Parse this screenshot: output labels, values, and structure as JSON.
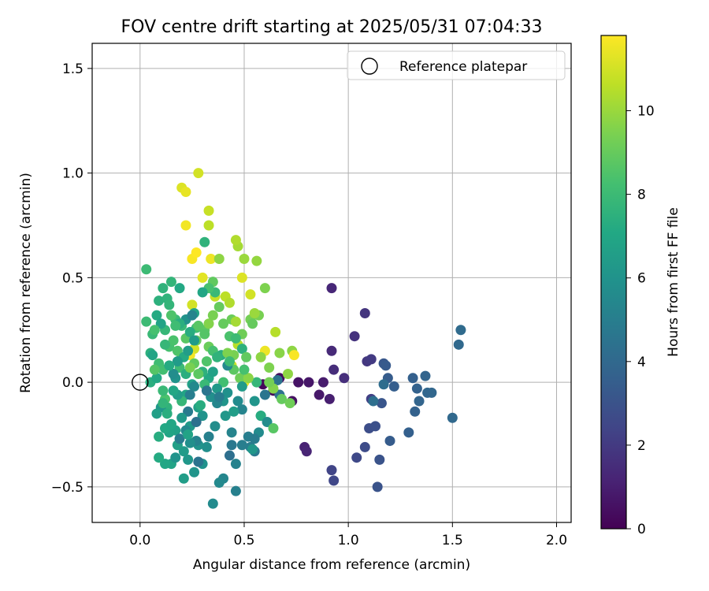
{
  "chart_data": {
    "type": "scatter",
    "title": "FOV centre drift starting at 2025/05/31 07:04:33",
    "xlabel": "Angular distance from reference (arcmin)",
    "ylabel": "Rotation from reference (arcmin)",
    "xlim": [
      -0.23,
      2.07
    ],
    "ylim": [
      -0.67,
      1.62
    ],
    "xticks": [
      0.0,
      0.5,
      1.0,
      1.5,
      2.0
    ],
    "xtick_labels": [
      "0.0",
      "0.5",
      "1.0",
      "1.5",
      "2.0"
    ],
    "yticks": [
      -0.5,
      0.0,
      0.5,
      1.0,
      1.5
    ],
    "ytick_labels": [
      "−0.5",
      "0.0",
      "0.5",
      "1.0",
      "1.5"
    ],
    "grid": true,
    "legend": {
      "placement": "top-right",
      "entries": [
        "Reference platepar"
      ]
    },
    "reference_point": {
      "x": 0.0,
      "y": 0.0,
      "label": "Reference platepar"
    },
    "colorbar": {
      "label": "Hours from first FF file",
      "colormap": "viridis",
      "range": [
        0,
        11.8
      ],
      "ticks": [
        0,
        2,
        4,
        6,
        8,
        10
      ],
      "tick_labels": [
        "0",
        "2",
        "4",
        "6",
        "8",
        "10"
      ]
    },
    "points": [
      [
        0.59,
        -0.01,
        0.2
      ],
      [
        0.64,
        -0.04,
        0.3
      ],
      [
        0.67,
        0.02,
        0.4
      ],
      [
        0.73,
        -0.09,
        0.5
      ],
      [
        0.76,
        0.0,
        0.6
      ],
      [
        0.81,
        0.0,
        0.7
      ],
      [
        0.86,
        -0.06,
        0.8
      ],
      [
        0.88,
        0.0,
        0.9
      ],
      [
        0.91,
        -0.08,
        1.0
      ],
      [
        0.79,
        -0.31,
        1.1
      ],
      [
        0.8,
        -0.33,
        1.2
      ],
      [
        0.92,
        0.45,
        1.3
      ],
      [
        0.92,
        0.15,
        1.4
      ],
      [
        0.93,
        0.06,
        1.5
      ],
      [
        0.98,
        0.02,
        1.6
      ],
      [
        1.03,
        0.22,
        1.7
      ],
      [
        1.08,
        0.33,
        1.8
      ],
      [
        1.09,
        0.1,
        1.9
      ],
      [
        1.11,
        0.11,
        2.0
      ],
      [
        1.11,
        -0.08,
        2.2
      ],
      [
        0.92,
        -0.42,
        2.4
      ],
      [
        0.93,
        -0.47,
        2.5
      ],
      [
        1.04,
        -0.36,
        2.6
      ],
      [
        1.08,
        -0.31,
        2.7
      ],
      [
        1.1,
        -0.22,
        2.8
      ],
      [
        1.13,
        -0.21,
        2.9
      ],
      [
        1.14,
        -0.5,
        3.0
      ],
      [
        1.15,
        -0.37,
        3.0
      ],
      [
        1.16,
        -0.1,
        3.1
      ],
      [
        1.17,
        0.09,
        3.2
      ],
      [
        1.18,
        0.08,
        3.3
      ],
      [
        1.19,
        0.02,
        3.4
      ],
      [
        1.2,
        -0.28,
        3.4
      ],
      [
        1.22,
        -0.02,
        3.5
      ],
      [
        1.29,
        -0.24,
        3.6
      ],
      [
        1.31,
        0.02,
        3.6
      ],
      [
        1.32,
        -0.14,
        3.7
      ],
      [
        1.33,
        -0.03,
        3.7
      ],
      [
        1.34,
        -0.09,
        3.8
      ],
      [
        1.37,
        0.03,
        3.8
      ],
      [
        1.38,
        -0.05,
        3.9
      ],
      [
        1.4,
        -0.05,
        3.9
      ],
      [
        1.5,
        -0.17,
        4.0
      ],
      [
        1.53,
        0.18,
        4.0
      ],
      [
        1.54,
        0.25,
        4.1
      ],
      [
        1.17,
        -0.01,
        4.2
      ],
      [
        1.12,
        -0.09,
        4.3
      ],
      [
        0.67,
        -0.06,
        4.4
      ],
      [
        0.66,
        0.01,
        4.5
      ],
      [
        0.6,
        -0.06,
        4.6
      ],
      [
        0.58,
        -0.16,
        4.7
      ],
      [
        0.55,
        -0.33,
        4.8
      ],
      [
        0.53,
        -0.31,
        4.9
      ],
      [
        0.52,
        -0.26,
        5.0
      ],
      [
        0.49,
        -0.3,
        5.0
      ],
      [
        0.46,
        -0.52,
        5.1
      ],
      [
        0.46,
        -0.39,
        5.2
      ],
      [
        0.44,
        -0.24,
        5.3
      ],
      [
        0.4,
        -0.46,
        5.4
      ],
      [
        0.38,
        -0.48,
        5.5
      ],
      [
        0.35,
        -0.58,
        5.6
      ],
      [
        0.36,
        -0.21,
        5.7
      ],
      [
        0.32,
        -0.31,
        5.8
      ],
      [
        0.3,
        -0.39,
        5.9
      ],
      [
        0.28,
        -0.3,
        6.0
      ],
      [
        0.26,
        -0.43,
        6.1
      ],
      [
        0.23,
        -0.37,
        6.2
      ],
      [
        0.24,
        -0.21,
        6.3
      ],
      [
        0.21,
        -0.33,
        6.4
      ],
      [
        0.21,
        -0.46,
        6.5
      ],
      [
        0.18,
        -0.3,
        6.6
      ],
      [
        0.17,
        -0.23,
        6.7
      ],
      [
        0.15,
        -0.39,
        6.8
      ],
      [
        0.14,
        -0.24,
        6.9
      ],
      [
        0.12,
        -0.39,
        7.0
      ],
      [
        0.12,
        -0.22,
        7.1
      ],
      [
        0.09,
        -0.36,
        7.2
      ],
      [
        0.09,
        -0.26,
        7.3
      ],
      [
        0.05,
        0.0,
        7.4
      ],
      [
        0.05,
        0.14,
        7.5
      ],
      [
        0.09,
        0.39,
        7.5
      ],
      [
        0.11,
        0.45,
        7.6
      ],
      [
        0.13,
        0.4,
        7.6
      ],
      [
        0.15,
        0.48,
        7.7
      ],
      [
        0.12,
        0.25,
        7.8
      ],
      [
        0.19,
        0.28,
        7.8
      ],
      [
        0.2,
        0.27,
        7.9
      ],
      [
        0.06,
        0.23,
        7.9
      ],
      [
        0.03,
        0.29,
        8.0
      ],
      [
        0.03,
        0.54,
        8.0
      ],
      [
        0.09,
        0.09,
        8.1
      ],
      [
        0.11,
        0.06,
        8.2
      ],
      [
        0.14,
        0.17,
        8.3
      ],
      [
        0.16,
        0.2,
        8.4
      ],
      [
        0.18,
        0.15,
        8.5
      ],
      [
        0.2,
        0.12,
        8.6
      ],
      [
        0.22,
        0.21,
        8.7
      ],
      [
        0.31,
        0.25,
        8.8
      ],
      [
        0.35,
        0.48,
        8.9
      ],
      [
        0.4,
        0.28,
        9.0
      ],
      [
        0.44,
        0.3,
        9.1
      ],
      [
        0.49,
        0.23,
        9.2
      ],
      [
        0.53,
        0.3,
        9.3
      ],
      [
        0.57,
        0.32,
        9.4
      ],
      [
        0.6,
        0.45,
        9.5
      ],
      [
        0.62,
        0.07,
        9.5
      ],
      [
        0.64,
        -0.03,
        9.6
      ],
      [
        0.67,
        0.14,
        9.7
      ],
      [
        0.71,
        0.04,
        9.8
      ],
      [
        0.73,
        0.15,
        9.8
      ],
      [
        0.5,
        0.59,
        10.0
      ],
      [
        0.47,
        0.65,
        10.2
      ],
      [
        0.46,
        0.68,
        10.4
      ],
      [
        0.33,
        0.75,
        10.6
      ],
      [
        0.33,
        0.82,
        10.8
      ],
      [
        0.28,
        1.0,
        11.0
      ],
      [
        0.2,
        0.93,
        11.2
      ],
      [
        0.22,
        0.91,
        11.4
      ],
      [
        0.22,
        0.75,
        11.6
      ],
      [
        0.25,
        0.59,
        11.7
      ],
      [
        0.27,
        0.62,
        11.8
      ],
      [
        0.34,
        0.59,
        11.5
      ],
      [
        0.3,
        0.5,
        11.3
      ],
      [
        0.25,
        0.37,
        11.0
      ],
      [
        0.36,
        0.41,
        10.8
      ],
      [
        0.41,
        0.41,
        10.6
      ],
      [
        0.43,
        0.38,
        10.4
      ],
      [
        0.46,
        0.29,
        10.2
      ],
      [
        0.47,
        0.18,
        10.5
      ],
      [
        0.44,
        0.08,
        11.0
      ],
      [
        0.5,
        0.0,
        11.4
      ],
      [
        0.53,
        0.42,
        11.0
      ],
      [
        0.55,
        0.33,
        10.0
      ],
      [
        0.6,
        0.15,
        11.5
      ],
      [
        0.74,
        0.13,
        11.7
      ],
      [
        0.65,
        0.24,
        10.5
      ],
      [
        0.58,
        0.12,
        9.8
      ],
      [
        0.52,
        0.02,
        10.8
      ],
      [
        0.26,
        0.16,
        11.0
      ],
      [
        0.24,
        0.13,
        11.6
      ],
      [
        0.49,
        0.5,
        11.2
      ],
      [
        0.45,
        0.13,
        9.4
      ],
      [
        0.56,
        0.58,
        9.9
      ],
      [
        0.38,
        0.59,
        9.8
      ],
      [
        0.54,
        0.28,
        9.0
      ],
      [
        0.27,
        0.26,
        8.2
      ],
      [
        0.17,
        0.3,
        8.0
      ],
      [
        0.14,
        0.37,
        7.7
      ],
      [
        0.36,
        0.43,
        7.9
      ],
      [
        0.33,
        0.45,
        8.3
      ],
      [
        0.3,
        0.43,
        7.0
      ],
      [
        0.31,
        0.67,
        7.6
      ],
      [
        0.26,
        0.33,
        6.9
      ],
      [
        0.22,
        0.3,
        6.0
      ],
      [
        0.19,
        0.28,
        7.4
      ],
      [
        0.08,
        0.32,
        7.2
      ],
      [
        0.1,
        0.28,
        6.8
      ],
      [
        0.15,
        0.32,
        8.5
      ],
      [
        0.17,
        0.27,
        8.1
      ],
      [
        0.24,
        0.24,
        7.3
      ],
      [
        0.31,
        0.23,
        8.6
      ],
      [
        0.33,
        0.17,
        9.1
      ],
      [
        0.35,
        0.15,
        8.3
      ],
      [
        0.39,
        0.13,
        7.4
      ],
      [
        0.42,
        0.14,
        9.5
      ],
      [
        0.45,
        0.06,
        8.8
      ],
      [
        0.48,
        0.02,
        9.2
      ],
      [
        0.49,
        -0.02,
        6.4
      ],
      [
        0.55,
        -0.09,
        6.1
      ],
      [
        0.58,
        -0.16,
        7.3
      ],
      [
        0.61,
        -0.19,
        5.7
      ],
      [
        0.56,
        0.0,
        7.8
      ],
      [
        0.52,
        0.02,
        9.7
      ],
      [
        0.4,
        0.0,
        8.2
      ],
      [
        0.37,
        -0.03,
        6.3
      ],
      [
        0.33,
        0.02,
        7.1
      ],
      [
        0.3,
        0.05,
        7.5
      ],
      [
        0.28,
        0.04,
        8.8
      ],
      [
        0.25,
        -0.01,
        6.7
      ],
      [
        0.22,
        -0.06,
        6.9
      ],
      [
        0.2,
        -0.09,
        7.8
      ],
      [
        0.18,
        -0.06,
        6.5
      ],
      [
        0.16,
        -0.04,
        7.0
      ],
      [
        0.13,
        -0.12,
        7.6
      ],
      [
        0.12,
        -0.08,
        8.4
      ],
      [
        0.11,
        -0.04,
        7.9
      ],
      [
        0.1,
        -0.12,
        6.2
      ],
      [
        0.08,
        -0.15,
        6.6
      ],
      [
        0.08,
        0.02,
        7.1
      ],
      [
        0.07,
        0.06,
        8.6
      ],
      [
        0.17,
        0.02,
        6.0
      ],
      [
        0.19,
        0.07,
        8.0
      ],
      [
        0.21,
        0.12,
        7.2
      ],
      [
        0.23,
        0.15,
        6.5
      ],
      [
        0.27,
        0.2,
        9.0
      ],
      [
        0.33,
        0.28,
        9.6
      ],
      [
        0.38,
        0.36,
        9.0
      ],
      [
        0.43,
        0.22,
        8.4
      ],
      [
        0.46,
        0.21,
        8.0
      ],
      [
        0.49,
        0.16,
        7.5
      ],
      [
        0.51,
        0.12,
        8.9
      ],
      [
        0.62,
        0.0,
        9.3
      ],
      [
        0.64,
        -0.22,
        8.7
      ],
      [
        0.68,
        -0.08,
        9.0
      ],
      [
        0.72,
        -0.1,
        9.2
      ],
      [
        0.49,
        -0.13,
        5.3
      ],
      [
        0.47,
        -0.09,
        5.6
      ],
      [
        0.42,
        -0.05,
        5.9
      ],
      [
        0.4,
        -0.09,
        6.1
      ],
      [
        0.37,
        -0.1,
        5.4
      ],
      [
        0.34,
        -0.07,
        5.8
      ],
      [
        0.3,
        -0.16,
        6.0
      ],
      [
        0.28,
        -0.12,
        6.6
      ],
      [
        0.26,
        -0.02,
        5.5
      ],
      [
        0.24,
        -0.06,
        5.0
      ],
      [
        0.23,
        -0.14,
        4.8
      ],
      [
        0.2,
        -0.17,
        6.3
      ],
      [
        0.15,
        -0.2,
        7.0
      ],
      [
        0.13,
        -0.15,
        7.4
      ],
      [
        0.11,
        -0.1,
        7.7
      ],
      [
        0.41,
        -0.16,
        6.2
      ],
      [
        0.44,
        -0.3,
        4.7
      ],
      [
        0.27,
        -0.28,
        5.2
      ],
      [
        0.22,
        -0.23,
        5.5
      ],
      [
        0.19,
        -0.27,
        4.9
      ],
      [
        0.24,
        -0.29,
        5.8
      ],
      [
        0.17,
        -0.36,
        6.0
      ],
      [
        0.28,
        -0.38,
        4.5
      ],
      [
        0.38,
        -0.07,
        4.9
      ],
      [
        0.42,
        0.08,
        5.5
      ],
      [
        0.35,
        0.05,
        6.7
      ],
      [
        0.31,
        -0.01,
        7.9
      ],
      [
        0.26,
        0.09,
        8.9
      ],
      [
        0.22,
        0.04,
        7.4
      ],
      [
        0.18,
        0.1,
        6.4
      ],
      [
        0.16,
        0.04,
        5.7
      ],
      [
        0.14,
        0.08,
        7.2
      ],
      [
        0.24,
        0.07,
        9.4
      ],
      [
        0.32,
        0.1,
        8.5
      ],
      [
        0.37,
        0.12,
        7.6
      ],
      [
        0.43,
        0.1,
        8.0
      ],
      [
        0.5,
        0.06,
        8.3
      ],
      [
        0.35,
        0.32,
        9.4
      ],
      [
        0.28,
        0.27,
        8.7
      ],
      [
        0.25,
        0.32,
        5.3
      ],
      [
        0.26,
        0.2,
        6.4
      ],
      [
        0.19,
        0.45,
        7.1
      ],
      [
        0.12,
        0.18,
        7.8
      ],
      [
        0.07,
        0.25,
        8.3
      ],
      [
        0.06,
        0.13,
        6.9
      ],
      [
        0.57,
        -0.24,
        5.6
      ],
      [
        0.55,
        -0.27,
        4.9
      ],
      [
        0.54,
        -0.32,
        6.2
      ],
      [
        0.43,
        -0.35,
        4.3
      ],
      [
        0.27,
        -0.19,
        4.4
      ],
      [
        0.32,
        -0.04,
        4.6
      ],
      [
        0.29,
        -0.11,
        7.3
      ],
      [
        0.23,
        -0.25,
        6.8
      ],
      [
        0.33,
        -0.26,
        5.1
      ],
      [
        0.45,
        -0.14,
        6.5
      ]
    ]
  }
}
